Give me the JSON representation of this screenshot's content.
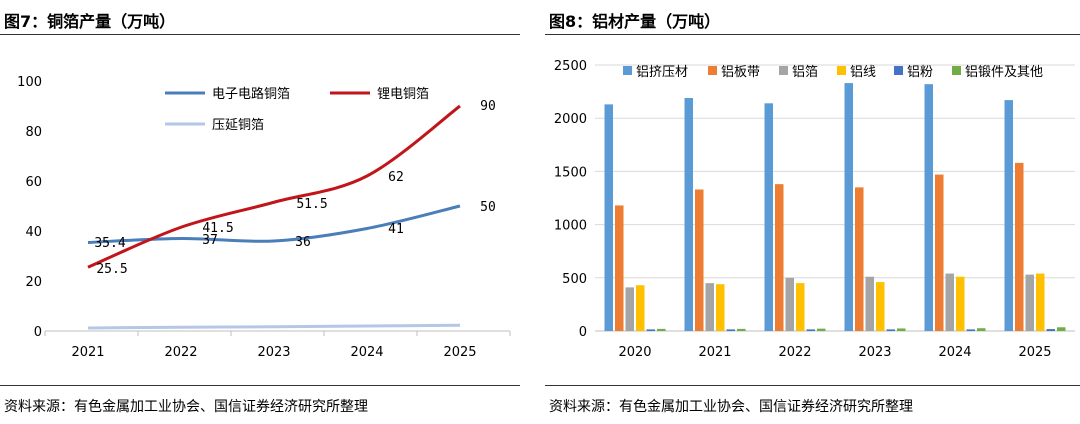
{
  "charts": [
    {
      "figure_title": "图7：铜箔产量（万吨）",
      "source": "资料来源：有色金属加工业协会、国信证券经济研究所整理"
    },
    {
      "figure_title": "图8：铝材产量（万吨）",
      "source": "资料来源：有色金属加工业协会、国信证券经济研究所整理"
    }
  ],
  "chart_data": [
    {
      "type": "line",
      "title": "图7：铜箔产量（万吨）",
      "xlabel": "",
      "ylabel": "",
      "x": [
        "2021",
        "2022",
        "2023",
        "2024",
        "2025"
      ],
      "ylim": [
        0,
        100
      ],
      "yticks": [
        "0",
        "20",
        "40",
        "60",
        "80",
        "100"
      ],
      "series": [
        {
          "name": "电子电路铜箔",
          "color": "#4a7ebb",
          "values": [
            35.4,
            37,
            36,
            41,
            50
          ],
          "labels": [
            "35.4",
            "37",
            "36",
            "41",
            "50"
          ]
        },
        {
          "name": "锂电铜箔",
          "color": "#c0161b",
          "values": [
            25.5,
            41.5,
            51.5,
            62,
            90
          ],
          "labels": [
            "25.5",
            "41.5",
            "51.5",
            "62",
            "90"
          ]
        },
        {
          "name": "压延铜箔",
          "color": "#b4c7e7",
          "values": [
            1.2,
            1.5,
            1.7,
            2.0,
            2.3
          ]
        }
      ],
      "legend": "top-center",
      "grid": false
    },
    {
      "type": "bar",
      "title": "图8：铝材产量（万吨）",
      "xlabel": "",
      "ylabel": "",
      "categories": [
        "2020",
        "2021",
        "2022",
        "2023",
        "2024",
        "2025"
      ],
      "ylim": [
        0,
        2500
      ],
      "yticks": [
        "0",
        "500",
        "1000",
        "1500",
        "2000",
        "2500"
      ],
      "series": [
        {
          "name": "铝挤压材",
          "color": "#5b9bd5",
          "values": [
            2130,
            2190,
            2140,
            2330,
            2320,
            2170
          ]
        },
        {
          "name": "铝板带",
          "color": "#ed7d31",
          "values": [
            1180,
            1330,
            1380,
            1350,
            1470,
            1580
          ]
        },
        {
          "name": "铝箔",
          "color": "#a5a5a5",
          "values": [
            410,
            450,
            500,
            510,
            540,
            530
          ]
        },
        {
          "name": "铝线",
          "color": "#ffc000",
          "values": [
            430,
            440,
            450,
            460,
            510,
            540
          ]
        },
        {
          "name": "铝粉",
          "color": "#4472c4",
          "values": [
            15,
            15,
            15,
            15,
            15,
            18
          ]
        },
        {
          "name": "铝锻件及其他",
          "color": "#70ad47",
          "values": [
            20,
            20,
            22,
            24,
            26,
            35
          ]
        }
      ],
      "legend": "top",
      "grid": true
    }
  ]
}
